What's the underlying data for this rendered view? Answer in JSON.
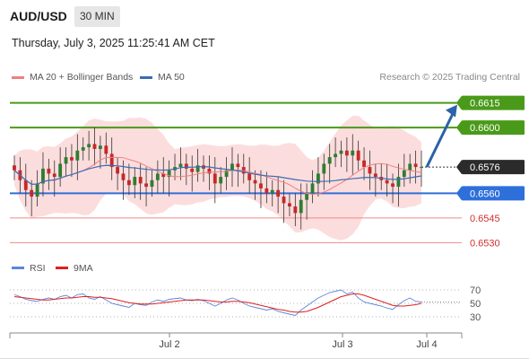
{
  "header": {
    "pair": "AUD/USD",
    "timeframe": "30 MIN"
  },
  "datetime": "Thursday, July 3, 2025 11:25:41 AM CET",
  "legend": {
    "ma20_bb": "MA 20 + Bollinger Bands",
    "ma50": "MA 50"
  },
  "credit": "Research © 2025 Trading Central",
  "colors": {
    "bull": "#2e7d32",
    "bear": "#c62828",
    "ma50": "#3a6db3",
    "ma20": "#f08080",
    "band": "#fbd5d5",
    "target": "#4a9a1a",
    "support": "#2e6fdb",
    "low_line": "#ef8a8a",
    "rsi": "#5b87d8",
    "rsi_ma": "#e02020",
    "arrow": "#2b62a8",
    "current": "#333333"
  },
  "chart_data": [
    {
      "type": "candlestick",
      "title": "AUD/USD 30 MIN",
      "price_range": [
        0.6522,
        0.6623
      ],
      "x_ticks": [
        "Jul 2",
        "Jul 3",
        "Jul 4"
      ],
      "close_series": [
        0.6574,
        0.6568,
        0.6562,
        0.6558,
        0.6566,
        0.6575,
        0.6572,
        0.657,
        0.6578,
        0.6582,
        0.658,
        0.6586,
        0.6588,
        0.659,
        0.6587,
        0.6589,
        0.6584,
        0.6576,
        0.6572,
        0.6568,
        0.6565,
        0.657,
        0.6566,
        0.6564,
        0.6568,
        0.6572,
        0.657,
        0.6574,
        0.6576,
        0.6578,
        0.6575,
        0.6573,
        0.6577,
        0.6575,
        0.6572,
        0.6566,
        0.657,
        0.6574,
        0.6578,
        0.6576,
        0.6572,
        0.6568,
        0.6566,
        0.6563,
        0.656,
        0.6562,
        0.6558,
        0.6554,
        0.6552,
        0.6548,
        0.6556,
        0.656,
        0.6566,
        0.6572,
        0.6578,
        0.6582,
        0.6584,
        0.6586,
        0.6583,
        0.6586,
        0.658,
        0.6576,
        0.6572,
        0.657,
        0.6568,
        0.6566,
        0.6564,
        0.657,
        0.6574,
        0.6578,
        0.6576,
        0.6576
      ],
      "levels": [
        {
          "price": 0.6615,
          "label": "0.6615",
          "kind": "target"
        },
        {
          "price": 0.66,
          "label": "0.6600",
          "kind": "target"
        },
        {
          "price": 0.6576,
          "label": "0.6576",
          "kind": "current"
        },
        {
          "price": 0.656,
          "label": "0.6560",
          "kind": "support"
        },
        {
          "price": 0.6545,
          "label": "0.6545",
          "kind": "low"
        },
        {
          "price": 0.653,
          "label": "0.6530",
          "kind": "low"
        }
      ],
      "arrow_target": 0.6615
    },
    {
      "type": "line",
      "legend": [
        "RSI",
        "9MA"
      ],
      "y_ticks": [
        70,
        50,
        30
      ],
      "rsi": [
        63,
        60,
        56,
        54,
        53,
        56,
        58,
        56,
        60,
        62,
        58,
        63,
        64,
        58,
        56,
        60,
        55,
        50,
        48,
        46,
        44,
        50,
        48,
        47,
        52,
        55,
        53,
        56,
        57,
        58,
        55,
        54,
        56,
        54,
        50,
        46,
        50,
        55,
        58,
        55,
        50,
        46,
        44,
        42,
        40,
        42,
        38,
        36,
        34,
        32,
        40,
        46,
        52,
        58,
        62,
        66,
        68,
        70,
        64,
        67,
        58,
        52,
        50,
        48,
        46,
        43,
        41,
        48,
        54,
        58,
        53,
        52
      ],
      "rsi_ma": [
        60,
        59,
        58,
        57,
        56,
        55,
        55,
        56,
        57,
        58,
        58,
        59,
        60,
        60,
        59,
        59,
        58,
        57,
        55,
        53,
        51,
        50,
        49,
        49,
        49,
        50,
        51,
        52,
        53,
        54,
        55,
        55,
        55,
        55,
        54,
        53,
        52,
        52,
        53,
        53,
        52,
        51,
        49,
        47,
        45,
        43,
        41,
        40,
        38,
        37,
        37,
        38,
        41,
        44,
        48,
        52,
        56,
        60,
        62,
        64,
        64,
        62,
        59,
        56,
        53,
        50,
        47,
        46,
        46,
        47,
        48,
        50
      ]
    }
  ]
}
